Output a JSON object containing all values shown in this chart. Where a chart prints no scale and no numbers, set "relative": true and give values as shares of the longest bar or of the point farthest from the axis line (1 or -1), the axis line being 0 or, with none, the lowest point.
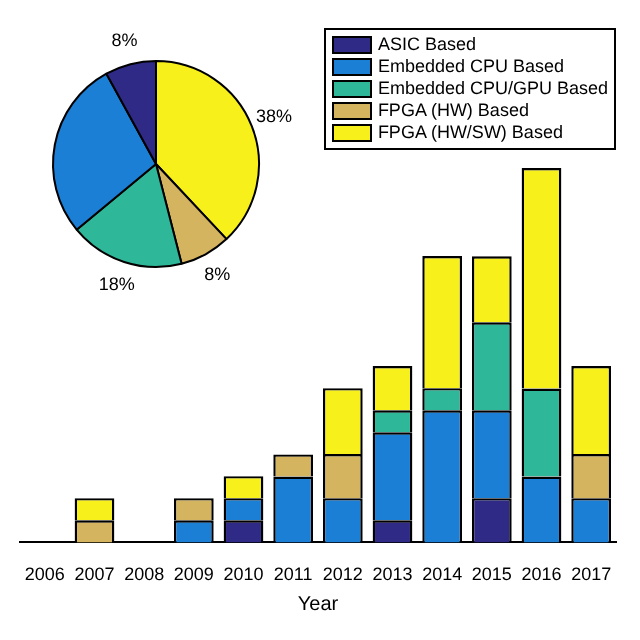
{
  "chart_data": [
    {
      "type": "bar",
      "xlabel": "Year",
      "stacked": true,
      "relative": true,
      "legend": "top right",
      "grid": false,
      "categories": [
        "2006",
        "2007",
        "2008",
        "2009",
        "2010",
        "2011",
        "2012",
        "2013",
        "2014",
        "2015",
        "2016",
        "2017"
      ],
      "series": [
        {
          "name": "ASIC Based",
          "color": "#2e2a86",
          "values": [
            null,
            null,
            null,
            null,
            0.059,
            null,
            null,
            0.059,
            null,
            0.118,
            null,
            null
          ]
        },
        {
          "name": "Embedded CPU Based",
          "color": "#1c7fd6",
          "values": [
            null,
            null,
            null,
            0.059,
            0.059,
            0.176,
            0.118,
            0.235,
            0.353,
            0.235,
            0.176,
            0.118
          ]
        },
        {
          "name": "Embedded CPU/GPU Based",
          "color": "#2fb79a",
          "values": [
            null,
            null,
            null,
            null,
            null,
            null,
            null,
            0.059,
            0.059,
            0.235,
            0.235,
            null
          ]
        },
        {
          "name": "FPGA (HW) Based",
          "color": "#d4b45e",
          "values": [
            null,
            0.059,
            null,
            0.059,
            null,
            0.059,
            0.118,
            null,
            null,
            null,
            null,
            0.118
          ]
        },
        {
          "name": "FPGA (HW/SW) Based",
          "color": "#f8f01a",
          "values": [
            null,
            0.059,
            null,
            null,
            0.059,
            null,
            0.176,
            0.118,
            0.353,
            0.176,
            0.589,
            0.235
          ]
        }
      ]
    },
    {
      "type": "pie",
      "categories": [
        null,
        null,
        null,
        null,
        null
      ],
      "values": [
        38,
        8,
        18,
        28,
        8
      ],
      "colors": [
        "#f8f01a",
        "#d4b45e",
        "#2fb79a",
        "#1c7fd6",
        "#2e2a86"
      ],
      "value_labels": [
        "38%",
        "8%",
        "18%",
        null,
        "8%"
      ],
      "legend": false
    }
  ]
}
